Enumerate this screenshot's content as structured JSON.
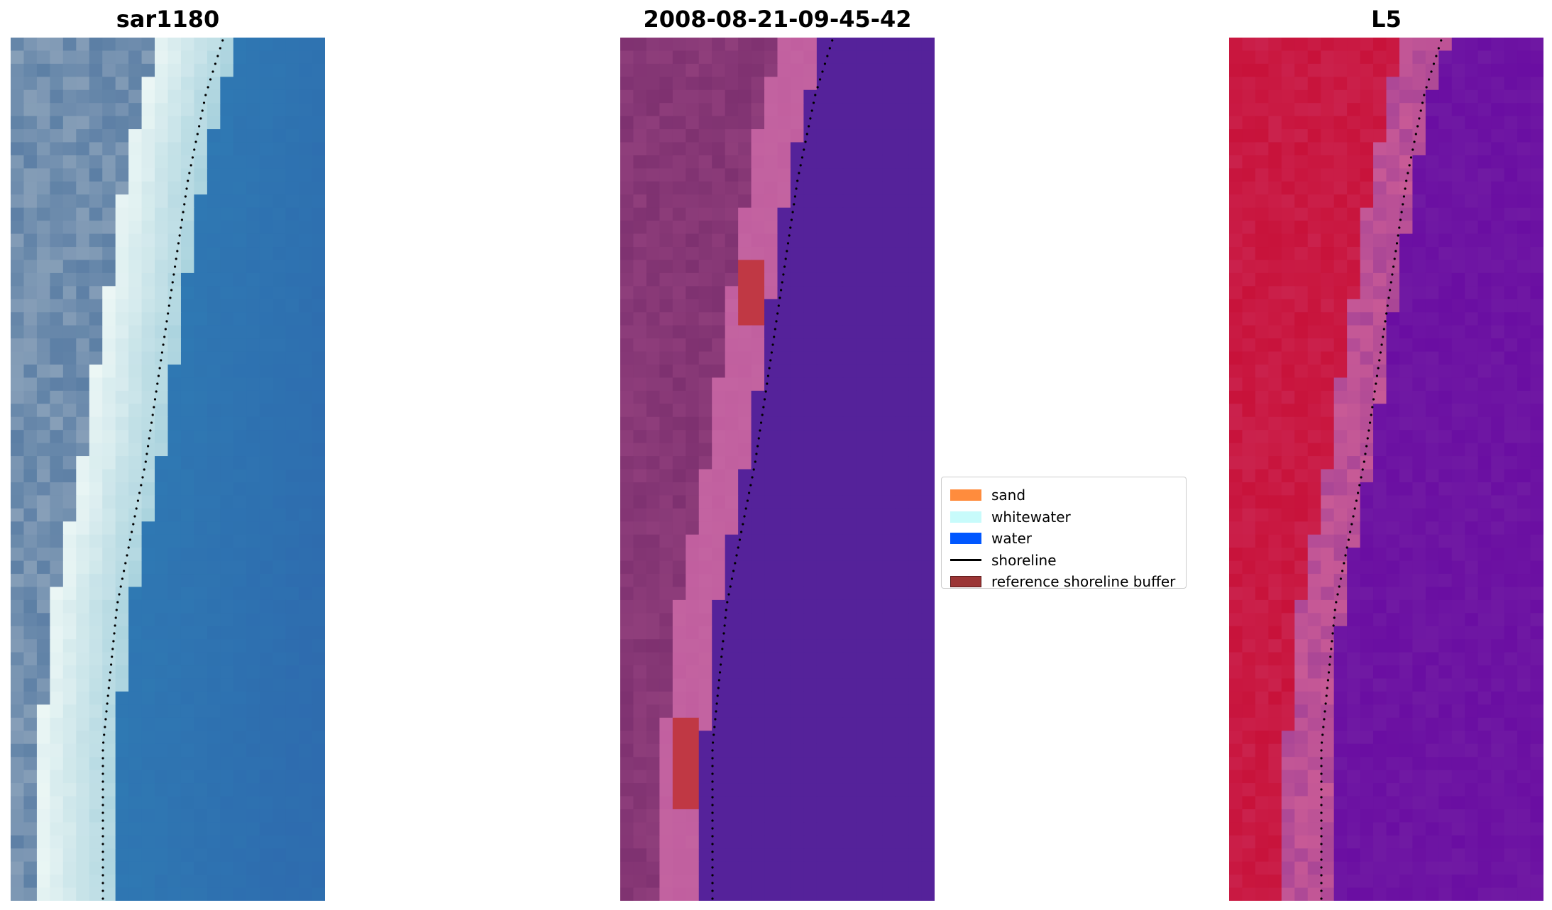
{
  "panels": [
    {
      "id": "rgb",
      "title": "sar1180"
    },
    {
      "id": "classified",
      "title": "2008-08-21-09-45-42"
    },
    {
      "id": "ndwi",
      "title": "L5"
    }
  ],
  "legend": {
    "items": [
      {
        "label": "sand",
        "kind": "patch",
        "color": "#ff8c3d"
      },
      {
        "label": "whitewater",
        "kind": "patch",
        "color": "#c8fbfb"
      },
      {
        "label": "water",
        "kind": "patch",
        "color": "#0057ff"
      },
      {
        "label": "shoreline",
        "kind": "line",
        "color": "#000000"
      },
      {
        "label": "reference shoreline buffer",
        "kind": "patch",
        "color": "#9b3535",
        "edge": "#5a1a1a"
      }
    ]
  },
  "colors": {
    "water_rgb": "#2f79b3",
    "whitewater_rgb": "#eef8f6",
    "land_rgb": "#5c7fa5",
    "water_class": "#55229a",
    "land_class": "#7e3170",
    "beach_class": "#c15f9f",
    "buffer_class": "#c03844",
    "land_ndwi": "#c8123a",
    "water_ndwi": "#6a0ea2",
    "shoreline": "#000000"
  }
}
